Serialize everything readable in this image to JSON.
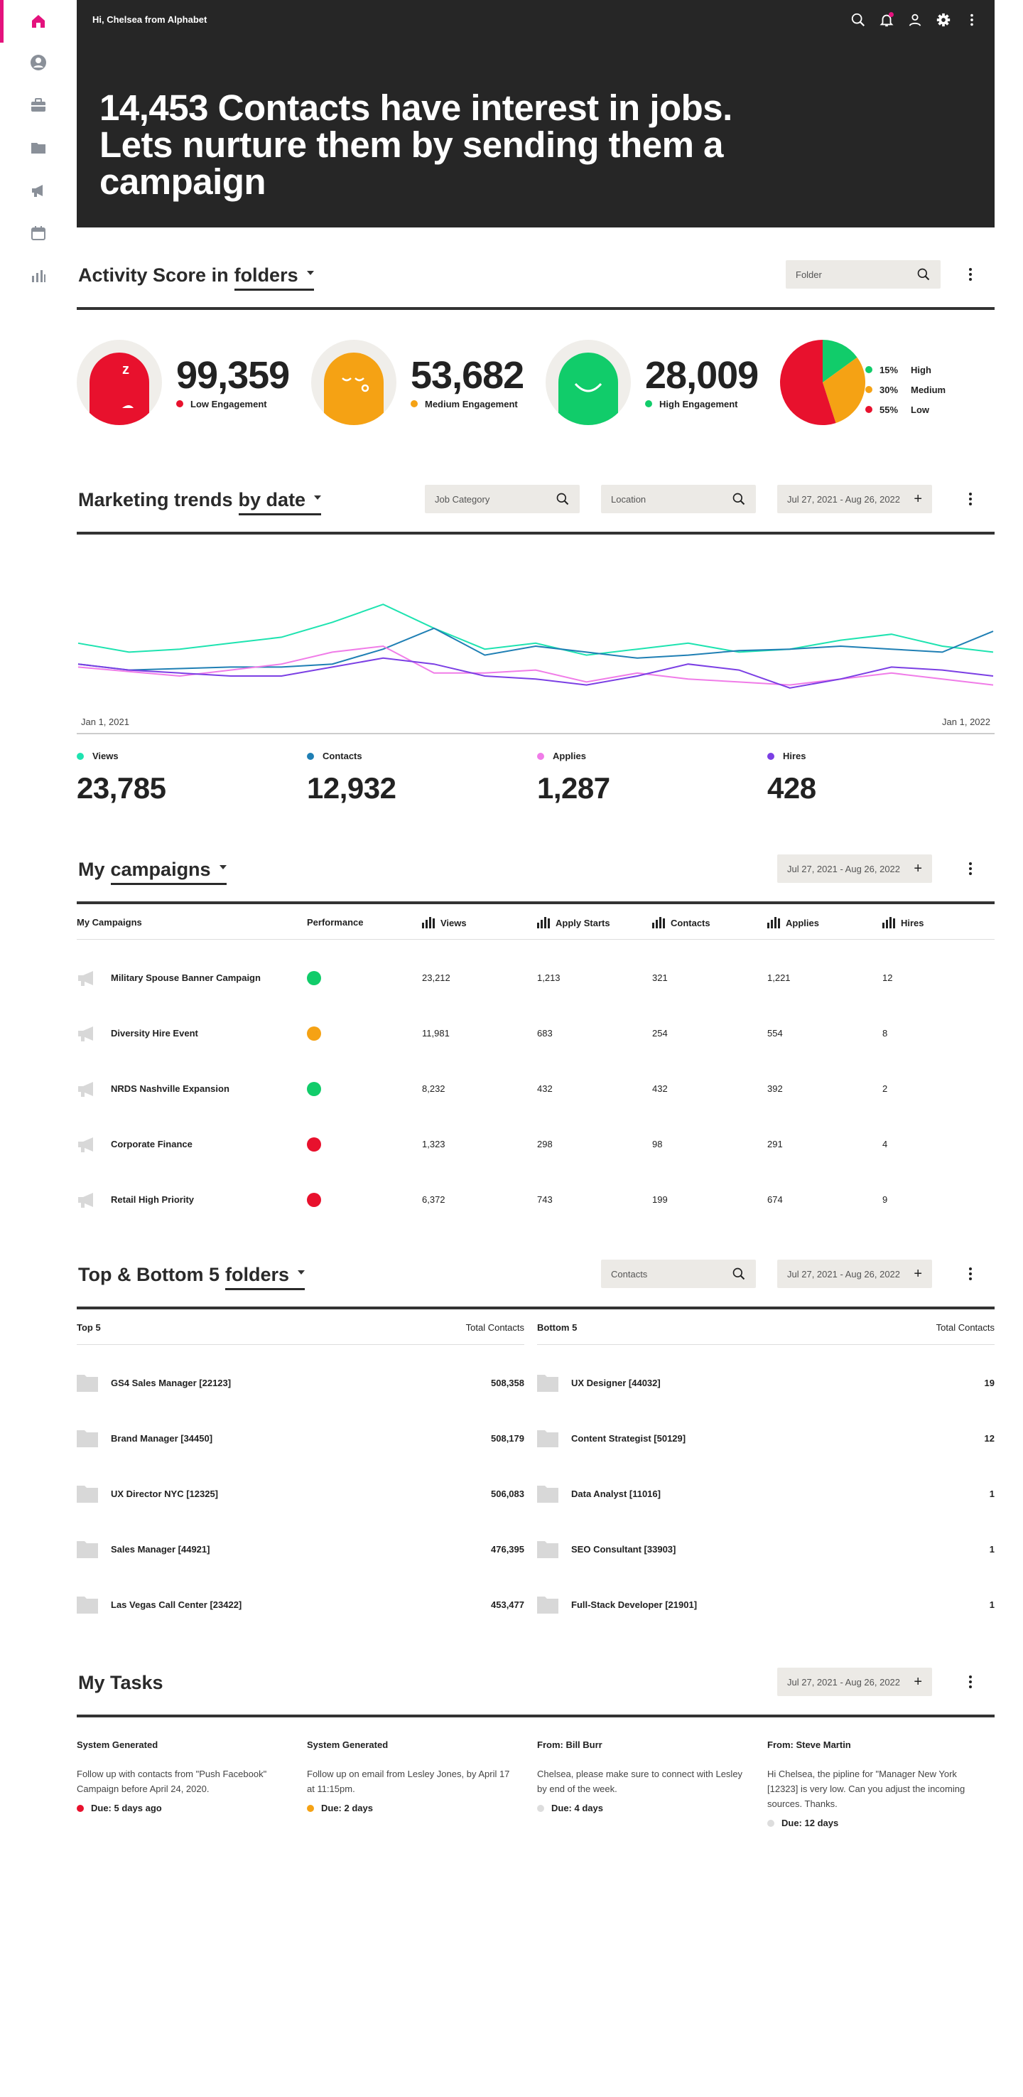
{
  "sidebar": {
    "items": [
      {
        "icon": "home-icon",
        "active": true
      },
      {
        "icon": "person-icon",
        "active": false
      },
      {
        "icon": "briefcase-icon",
        "active": false
      },
      {
        "icon": "folder-icon",
        "active": false
      },
      {
        "icon": "megaphone-icon",
        "active": false
      },
      {
        "icon": "calendar-icon",
        "active": false
      },
      {
        "icon": "bar-chart-icon",
        "active": false
      }
    ]
  },
  "header": {
    "greeting": "Hi, Chelsea from Alphabet",
    "headline": "14,453 Contacts have interest in jobs. Lets nurture them by sending them a campaign",
    "icons": [
      "search-icon",
      "bell-icon",
      "user-icon",
      "settings-icon",
      "more-icon"
    ]
  },
  "activity": {
    "title_prefix": "Activity Score in",
    "title_link": "folders",
    "folder_placeholder": "Folder",
    "scores": [
      {
        "value": "99,359",
        "label": "Low Engagement",
        "color": "#e8112d"
      },
      {
        "value": "53,682",
        "label": "Medium Engagement",
        "color": "#f5a214"
      },
      {
        "value": "28,009",
        "label": "High Engagement",
        "color": "#11cc6a"
      }
    ],
    "pie": [
      {
        "pct": "15%",
        "label": "High",
        "value": 15,
        "color": "#11cc6a"
      },
      {
        "pct": "30%",
        "label": "Medium",
        "value": 30,
        "color": "#f5a214"
      },
      {
        "pct": "55%",
        "label": "Low",
        "value": 55,
        "color": "#e8112d"
      }
    ]
  },
  "trends": {
    "title_prefix": "Marketing trends",
    "title_link": "by date",
    "job_category_placeholder": "Job Category",
    "location_placeholder": "Location",
    "date_range": "Jul 27, 2021 - Aug 26, 2022",
    "axis_start": "Jan 1, 2021",
    "axis_end": "Jan 1, 2022",
    "metrics": [
      {
        "label": "Views",
        "value": "23,785",
        "color": "#1ee3b0"
      },
      {
        "label": "Contacts",
        "value": "12,932",
        "color": "#1f7fb4"
      },
      {
        "label": "Applies",
        "value": "1,287",
        "color": "#f07ce8"
      },
      {
        "label": "Hires",
        "value": "428",
        "color": "#7b3fe4"
      }
    ]
  },
  "chart_data": {
    "type": "line",
    "x": [
      "Jan 1, 2021",
      "",
      "",
      "",
      "",
      "",
      "",
      "",
      "",
      "",
      "",
      "",
      "",
      "",
      "",
      "",
      "",
      "",
      "Jan 1, 2022"
    ],
    "ylim": [
      0,
      100
    ],
    "series": [
      {
        "name": "Views",
        "color": "#1ee3b0",
        "values": [
          52,
          46,
          48,
          52,
          56,
          66,
          78,
          62,
          48,
          52,
          44,
          48,
          52,
          46,
          48,
          54,
          58,
          50,
          46
        ]
      },
      {
        "name": "Contacts",
        "color": "#1f7fb4",
        "values": [
          38,
          34,
          35,
          36,
          36,
          38,
          48,
          62,
          44,
          50,
          46,
          42,
          44,
          47,
          48,
          50,
          48,
          46,
          60
        ]
      },
      {
        "name": "Applies",
        "color": "#f07ce8",
        "values": [
          36,
          33,
          30,
          34,
          38,
          46,
          50,
          32,
          32,
          34,
          26,
          32,
          28,
          26,
          24,
          28,
          32,
          28,
          24
        ]
      },
      {
        "name": "Hires",
        "color": "#7b3fe4",
        "values": [
          38,
          34,
          32,
          30,
          30,
          36,
          42,
          38,
          30,
          28,
          24,
          30,
          38,
          34,
          22,
          28,
          36,
          34,
          30
        ]
      }
    ]
  },
  "campaigns": {
    "title_prefix": "My",
    "title_link": "campaigns",
    "date_range": "Jul 27, 2021 - Aug 26, 2022",
    "columns": [
      "My Campaigns",
      "Performance",
      "Views",
      "Apply Starts",
      "Contacts",
      "Applies",
      "Hires"
    ],
    "rows": [
      {
        "name": "Military Spouse Banner Campaign",
        "perf": "#11cc6a",
        "views": "23,212",
        "apply_starts": "1,213",
        "contacts": "321",
        "applies": "1,221",
        "hires": "12"
      },
      {
        "name": "Diversity Hire Event",
        "perf": "#f5a214",
        "views": "11,981",
        "apply_starts": "683",
        "contacts": "254",
        "applies": "554",
        "hires": "8"
      },
      {
        "name": "NRDS Nashville Expansion",
        "perf": "#11cc6a",
        "views": "8,232",
        "apply_starts": "432",
        "contacts": "432",
        "applies": "392",
        "hires": "2"
      },
      {
        "name": "Corporate Finance",
        "perf": "#e8112d",
        "views": "1,323",
        "apply_starts": "298",
        "contacts": "98",
        "applies": "291",
        "hires": "4"
      },
      {
        "name": "Retail High Priority",
        "perf": "#e8112d",
        "views": "6,372",
        "apply_starts": "743",
        "contacts": "199",
        "applies": "674",
        "hires": "9"
      }
    ]
  },
  "topbottom": {
    "title_prefix": "Top & Bottom 5",
    "title_link": "folders",
    "contacts_placeholder": "Contacts",
    "date_range": "Jul 27, 2021 - Aug 26, 2022",
    "top_header": "Top 5",
    "bottom_header": "Bottom 5",
    "total_header": "Total Contacts",
    "top": [
      {
        "name": "GS4 Sales Manager [22123]",
        "total": "508,358"
      },
      {
        "name": "Brand Manager [34450]",
        "total": "508,179"
      },
      {
        "name": "UX Director NYC [12325]",
        "total": "506,083"
      },
      {
        "name": "Sales Manager [44921]",
        "total": "476,395"
      },
      {
        "name": "Las Vegas Call Center [23422]",
        "total": "453,477"
      }
    ],
    "bottom": [
      {
        "name": "UX Designer [44032]",
        "total": "19"
      },
      {
        "name": "Content Strategist [50129]",
        "total": "12"
      },
      {
        "name": "Data Analyst [11016]",
        "total": "1"
      },
      {
        "name": "SEO Consultant [33903]",
        "total": "1"
      },
      {
        "name": "Full-Stack Developer [21901]",
        "total": "1"
      }
    ]
  },
  "tasks": {
    "title": "My Tasks",
    "date_range": "Jul 27, 2021 - Aug 26, 2022",
    "items": [
      {
        "title": "System Generated",
        "desc": "Follow up with contacts from \"Push Facebook\" Campaign before April 24, 2020.",
        "due": "Due: 5 days ago",
        "color": "#e8112d"
      },
      {
        "title": "System Generated",
        "desc": "Follow up on email  from Lesley Jones, by April 17 at 11:15pm.",
        "due": "Due: 2 days",
        "color": "#f5a214"
      },
      {
        "title": "From: Bill Burr",
        "desc": "Chelsea, please make sure to connect with Lesley by end of the week.",
        "due": "Due: 4 days",
        "color": "#dddddd"
      },
      {
        "title": "From: Steve Martin",
        "desc": "Hi Chelsea, the pipline for \"Manager New York [12323] is very low. Can you adjust  the incoming sources. Thanks.",
        "due": "Due: 12 days",
        "color": "#dddddd"
      }
    ]
  }
}
